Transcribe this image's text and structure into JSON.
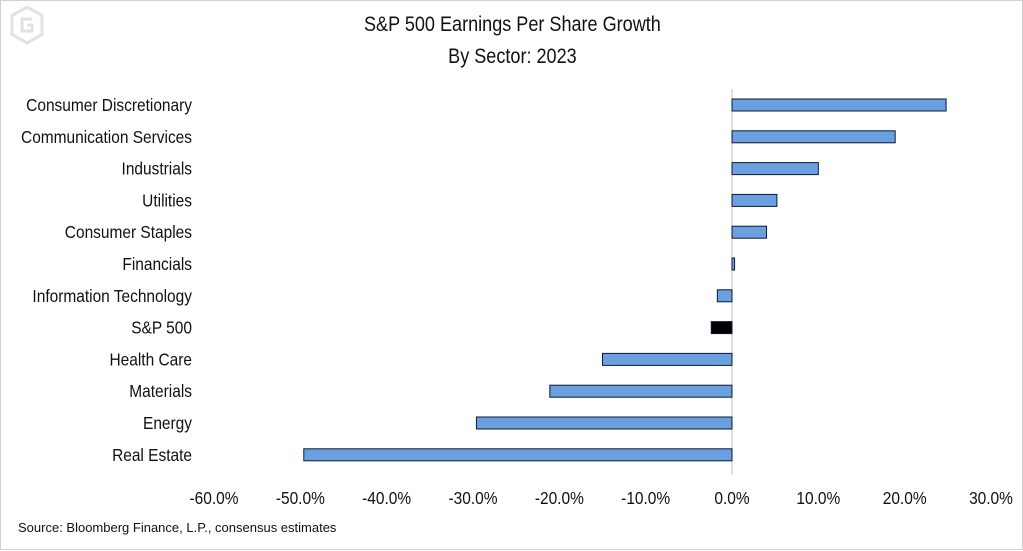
{
  "title": "S&P 500 Earnings Per Share Growth",
  "subtitle": "By Sector: 2023",
  "source": "Source: Bloomberg Finance, L.P., consensus estimates",
  "colors": {
    "bar": "#6a9fe0",
    "highlight": "#000000",
    "outline": "#0b1a33",
    "axis": "#bdbdbd"
  },
  "chart_data": {
    "type": "bar",
    "orientation": "horizontal",
    "title": "S&P 500 Earnings Per Share Growth",
    "subtitle": "By Sector: 2023",
    "categories": [
      "Consumer Discretionary",
      "Communication Services",
      "Industrials",
      "Utilities",
      "Consumer Staples",
      "Financials",
      "Information Technology",
      "S&P 500",
      "Health Care",
      "Materials",
      "Energy",
      "Real Estate"
    ],
    "values": [
      24.8,
      18.9,
      10.0,
      5.2,
      4.0,
      0.3,
      -1.7,
      -2.4,
      -15.0,
      -21.1,
      -29.6,
      -49.6
    ],
    "highlight": "S&P 500",
    "xlim": [
      -60,
      30
    ],
    "ticks": [
      -60,
      -50,
      -40,
      -30,
      -20,
      -10,
      0,
      10,
      20,
      30
    ],
    "tick_labels": [
      "-60.0%",
      "-50.0%",
      "-40.0%",
      "-30.0%",
      "-20.0%",
      "-10.0%",
      "0.0%",
      "10.0%",
      "20.0%",
      "30.0%"
    ],
    "grid": false,
    "legend": "none"
  }
}
